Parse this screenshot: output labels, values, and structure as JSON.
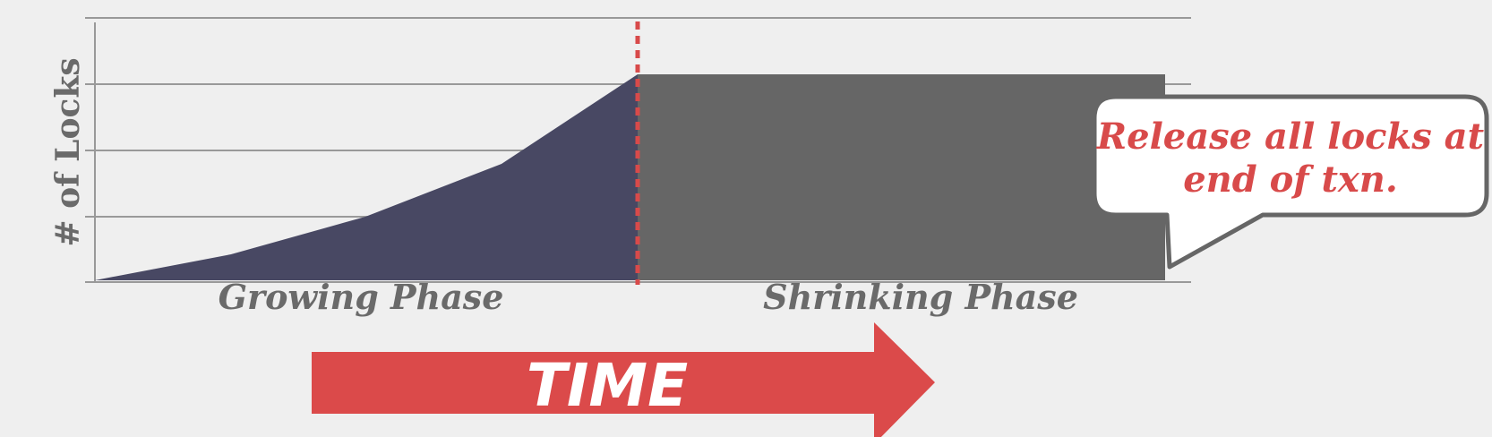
{
  "diagram": {
    "y_axis_label": "# of Locks",
    "growing_phase_label": "Growing Phase",
    "shrinking_phase_label": "Shrinking Phase",
    "time_arrow_label": "TIME",
    "callout": {
      "line1": "Release all locks at",
      "line2": "end of txn."
    }
  },
  "colors": {
    "background": "#efefef",
    "grid": "#999999",
    "growing_fill": "#484863",
    "shrinking_fill": "#666666",
    "phase_divider": "#d84a4a",
    "time_arrow": "#db4a4a",
    "callout_text": "#d84a4a",
    "label_text": "#6a6a6a"
  }
}
